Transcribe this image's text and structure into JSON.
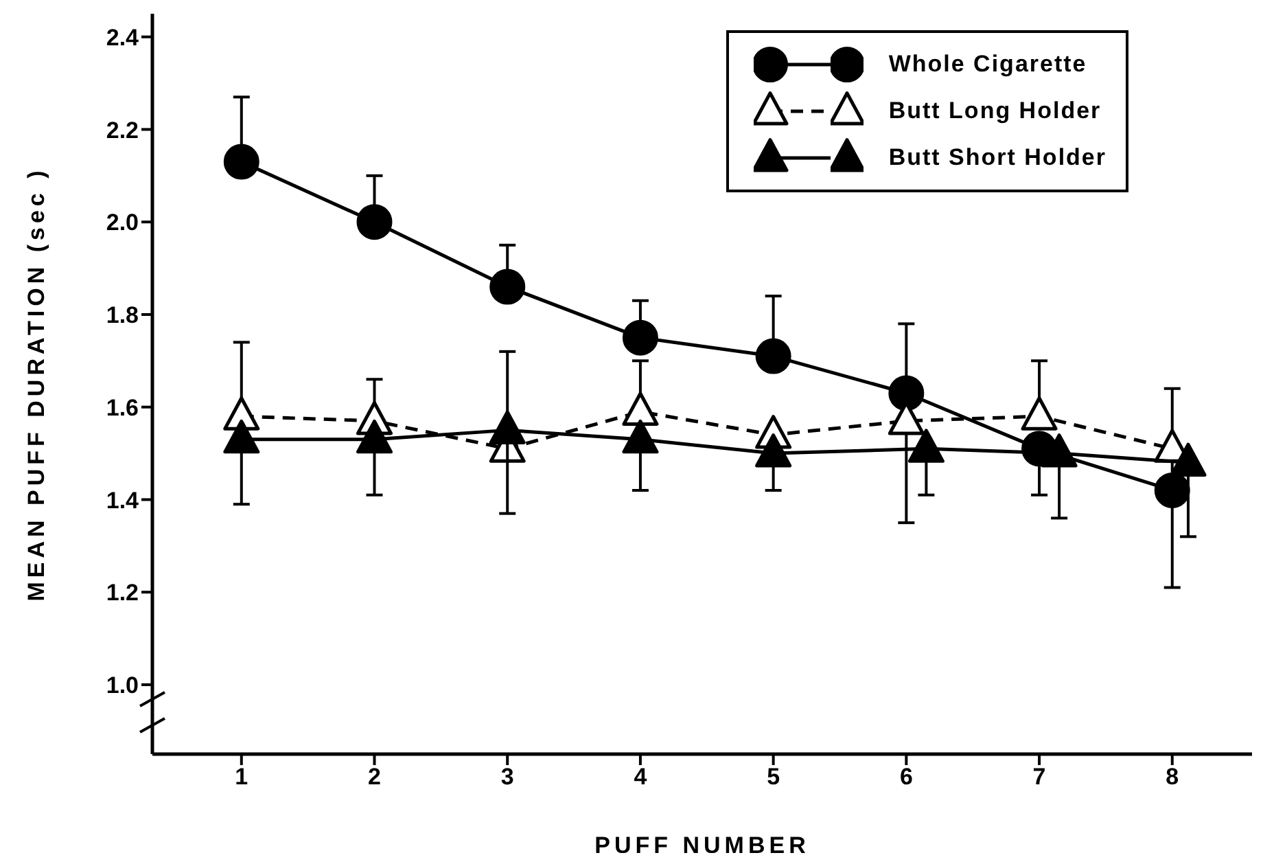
{
  "chart_data": {
    "type": "line",
    "xlabel": "PUFF NUMBER",
    "ylabel": "MEAN PUFF DURATION (sec )",
    "xlim": [
      0.33,
      8.6
    ],
    "xticks": [
      1,
      2,
      3,
      4,
      5,
      6,
      7,
      8
    ],
    "ylim": [
      0.85,
      2.45
    ],
    "yticks": [
      {
        "value": 1.0,
        "label": "1.0"
      },
      {
        "value": 1.2,
        "label": "1.2"
      },
      {
        "value": 1.4,
        "label": "1.4"
      },
      {
        "value": 1.6,
        "label": "1.6"
      },
      {
        "value": 1.8,
        "label": "1.8"
      },
      {
        "value": 2.0,
        "label": "2.0"
      },
      {
        "value": 2.2,
        "label": "2.2"
      },
      {
        "value": 2.4,
        "label": "2.4"
      }
    ],
    "grid": false,
    "legend": "top right",
    "series": [
      {
        "name": "Whole Cigarette",
        "color": "#000000",
        "marker": "circle",
        "line_style": "solid",
        "x": [
          1,
          2,
          3,
          4,
          5,
          6,
          7,
          8
        ],
        "values": [
          2.13,
          2.0,
          1.86,
          1.75,
          1.71,
          1.63,
          1.51,
          1.42
        ],
        "errors": [
          [
            2.13,
            2.27
          ],
          [
            2.0,
            2.1
          ],
          [
            1.86,
            1.95
          ],
          [
            1.75,
            1.83
          ],
          [
            1.71,
            1.84
          ],
          [
            1.63,
            1.78
          ],
          [
            1.41,
            1.51
          ],
          [
            1.21,
            1.64
          ]
        ]
      },
      {
        "name": "Butt Long Holder",
        "color": "#000000",
        "marker": "triangle",
        "colors": [
          "#ffffff",
          "#ffffff",
          "#ffffff",
          "#ffffff",
          "#ffffff",
          "#ffffff",
          "#ffffff",
          "#ffffff"
        ],
        "line_style": "dashed",
        "x": [
          1,
          2,
          3,
          4,
          5,
          6,
          7,
          8
        ],
        "values": [
          1.58,
          1.57,
          1.51,
          1.59,
          1.54,
          1.57,
          1.58,
          1.51
        ],
        "errors": [
          [
            1.58,
            1.74
          ],
          [
            1.57,
            1.66
          ],
          [
            1.51,
            1.72
          ],
          [
            1.59,
            1.7
          ],
          null,
          [
            1.35,
            1.57
          ],
          [
            1.58,
            1.7
          ],
          null
        ]
      },
      {
        "name": "Butt Short Holder",
        "color": "#000000",
        "marker": "triangle",
        "line_style": "solid",
        "x": [
          1,
          2,
          3,
          4,
          5,
          6.15,
          7.15,
          8.12
        ],
        "values": [
          1.53,
          1.53,
          1.55,
          1.53,
          1.5,
          1.51,
          1.5,
          1.48
        ],
        "errors": [
          [
            1.39,
            1.53
          ],
          [
            1.41,
            1.53
          ],
          [
            1.37,
            1.55
          ],
          [
            1.42,
            1.53
          ],
          [
            1.42,
            1.5
          ],
          [
            1.41,
            1.51
          ],
          [
            1.36,
            1.5
          ],
          [
            1.32,
            1.48
          ]
        ]
      }
    ]
  }
}
